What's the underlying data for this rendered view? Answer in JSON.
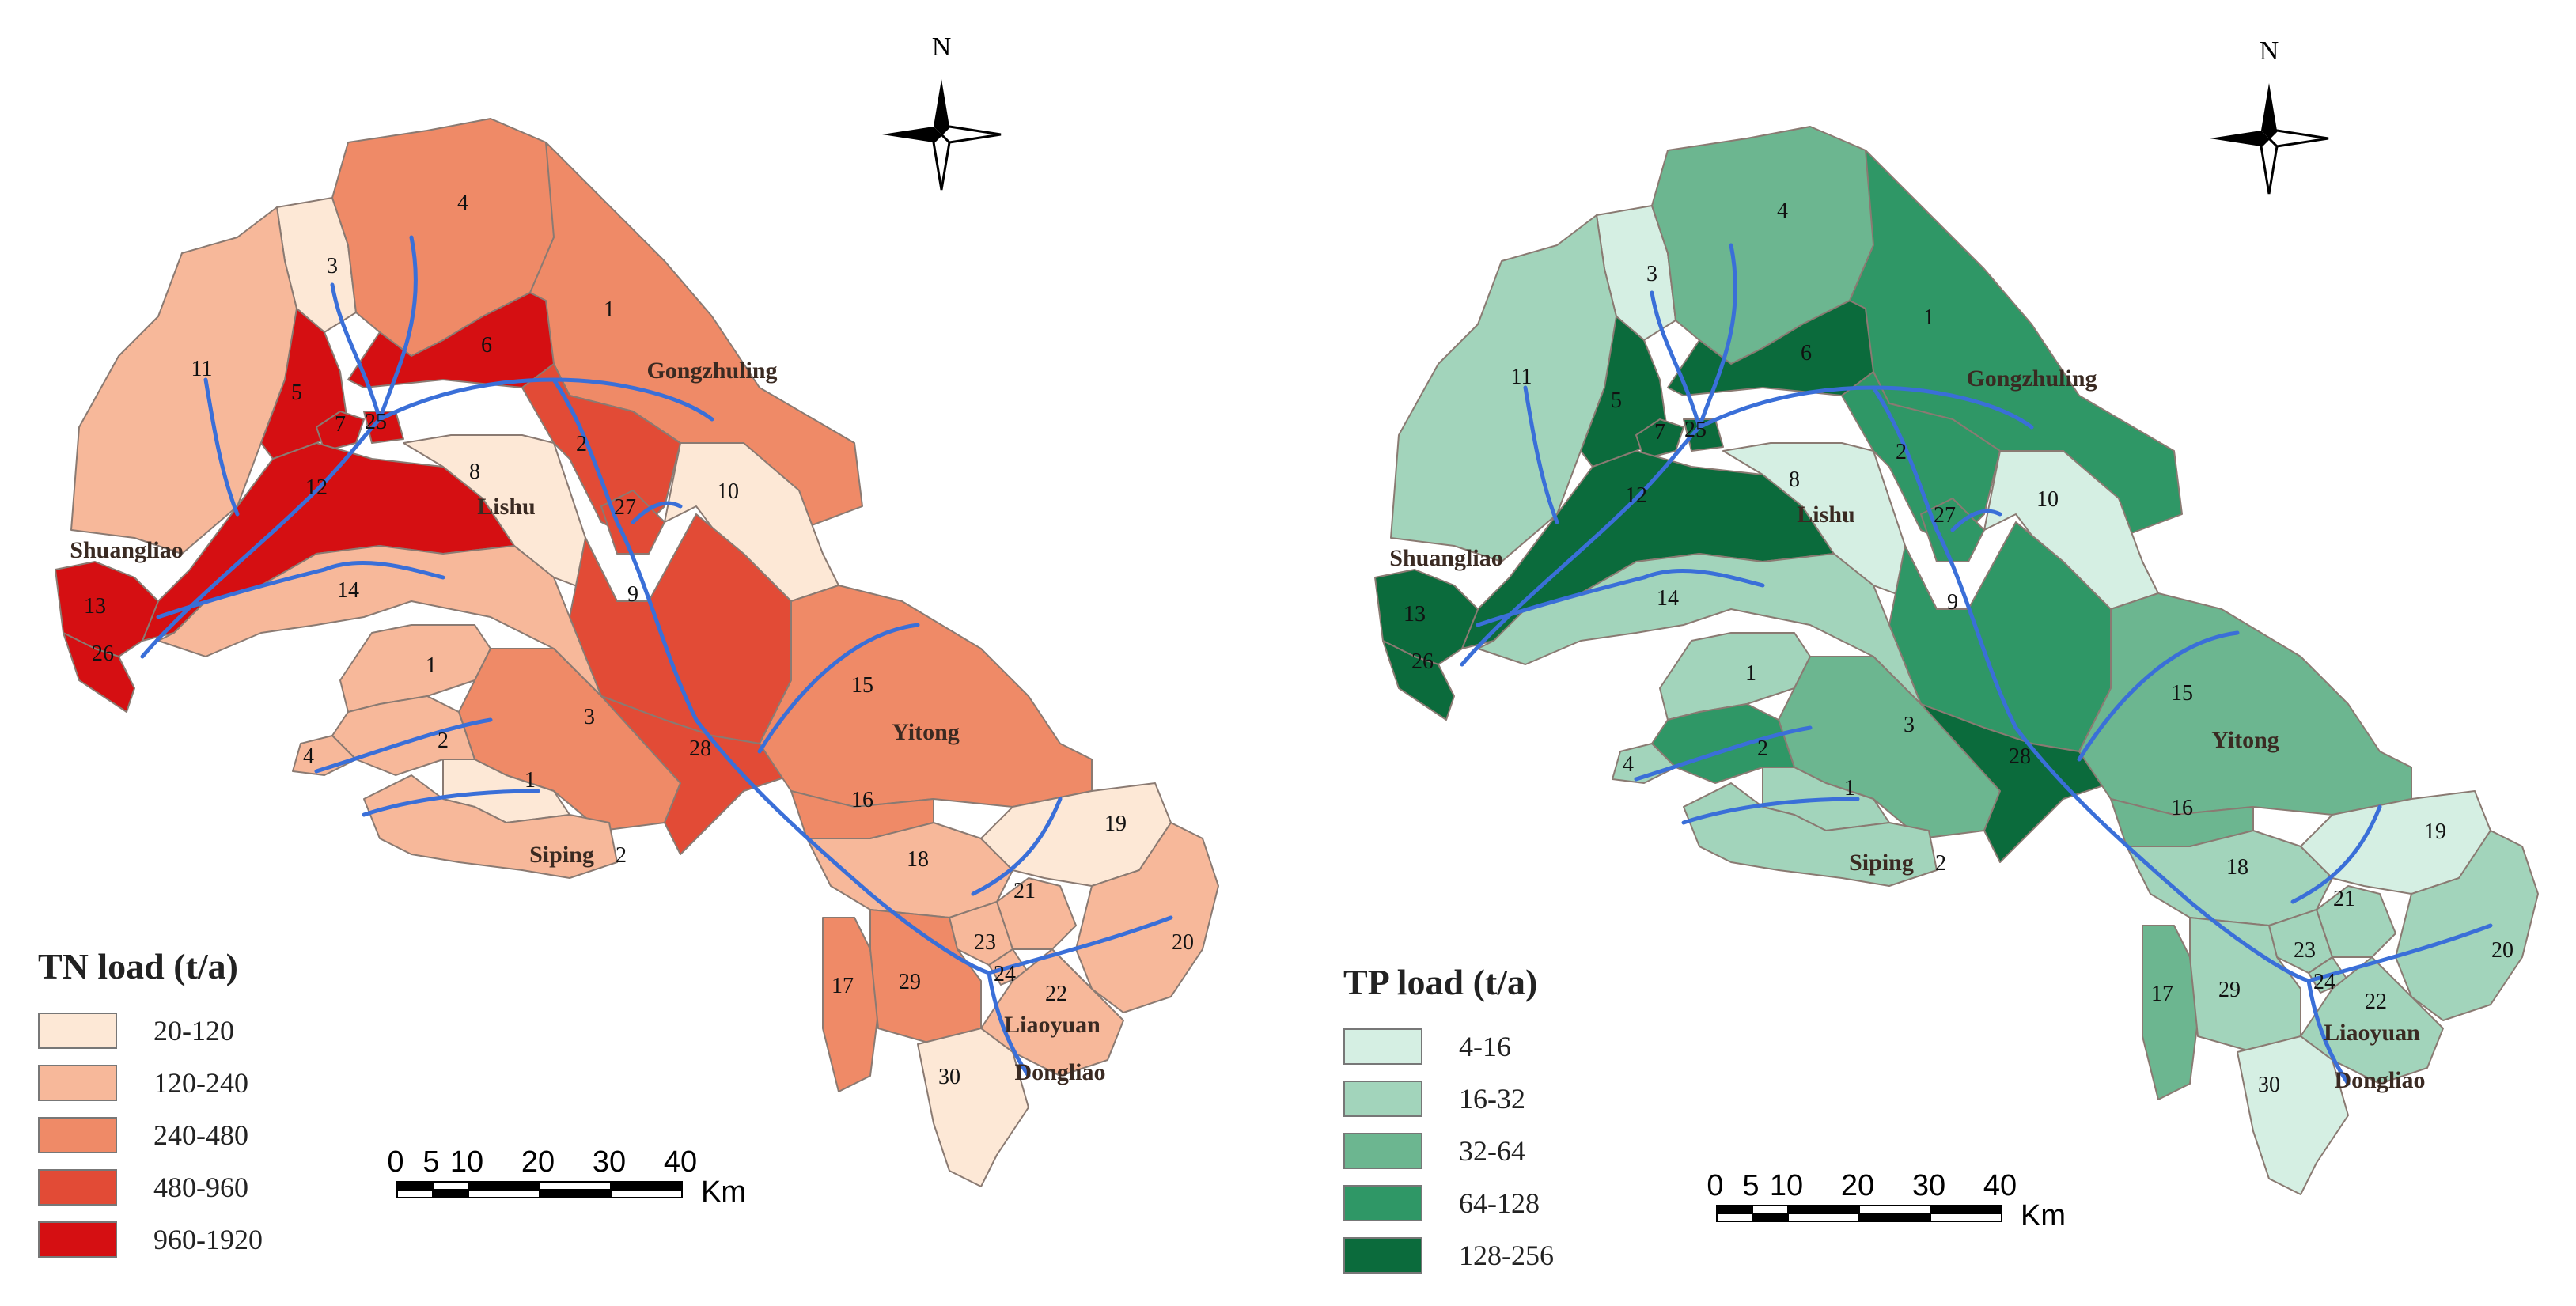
{
  "maps": [
    {
      "id": "tn",
      "north_label": "N",
      "legend_title": "TN load (t/a)",
      "classes": [
        {
          "label": "20-120",
          "color": "#fde8d6"
        },
        {
          "label": "120-240",
          "color": "#f7b89a"
        },
        {
          "label": "240-480",
          "color": "#ef8a67"
        },
        {
          "label": "480-960",
          "color": "#e24b36"
        },
        {
          "label": "960-1920",
          "color": "#d50f12"
        }
      ],
      "region_classes": {
        "3": 0,
        "4": 2,
        "1n": 2,
        "11": 1,
        "5": 4,
        "6": 4,
        "7": 4,
        "25": 4,
        "12": 4,
        "8": 0,
        "2n": 3,
        "27": 3,
        "10": 0,
        "9": 3,
        "14": 1,
        "13": 4,
        "26w": 4,
        "1w": 1,
        "3w": 2,
        "2w": 1,
        "4w": 1,
        "1s": 0,
        "2s": 1,
        "28": 3,
        "15": 2,
        "16": 2,
        "18": 1,
        "19": 0,
        "21": 1,
        "20": 1,
        "23": 1,
        "24": 1,
        "22": 1,
        "17": 2,
        "29": 2,
        "30": 0
      },
      "scale": {
        "ticks": [
          "0",
          "5",
          "10",
          "20",
          "30",
          "40"
        ],
        "unit": "Km"
      }
    },
    {
      "id": "tp",
      "north_label": "N",
      "legend_title": "TP load (t/a)",
      "classes": [
        {
          "label": "4-16",
          "color": "#d5efe3"
        },
        {
          "label": "16-32",
          "color": "#a2d4bb"
        },
        {
          "label": "32-64",
          "color": "#6cb690"
        },
        {
          "label": "64-128",
          "color": "#2f9766"
        },
        {
          "label": "128-256",
          "color": "#0b6b3c"
        }
      ],
      "region_classes": {
        "3": 0,
        "4": 2,
        "1n": 3,
        "11": 1,
        "5": 4,
        "6": 4,
        "7": 4,
        "25": 4,
        "12": 4,
        "8": 0,
        "2n": 3,
        "27": 3,
        "10": 0,
        "9": 3,
        "14": 1,
        "13": 4,
        "26w": 4,
        "1w": 1,
        "3w": 2,
        "2w": 3,
        "4w": 1,
        "1s": 1,
        "2s": 1,
        "28": 4,
        "15": 2,
        "16": 2,
        "18": 1,
        "19": 0,
        "21": 1,
        "20": 1,
        "23": 1,
        "24": 1,
        "22": 1,
        "17": 2,
        "29": 1,
        "30": 0
      },
      "scale": {
        "ticks": [
          "0",
          "5",
          "10",
          "20",
          "30",
          "40"
        ],
        "unit": "Km"
      }
    }
  ],
  "region_labels": {
    "3": "3",
    "4": "4",
    "1n": "1",
    "11": "11",
    "5": "5",
    "6": "6",
    "7": "7",
    "25": "25",
    "12": "12",
    "8": "8",
    "2n": "2",
    "27": "27",
    "10": "10",
    "9": "9",
    "14": "14",
    "13": "13",
    "26w": "26",
    "1w": "1",
    "3w": "3",
    "2w": "2",
    "4w": "4",
    "1s": "1",
    "2s": "2",
    "28": "28",
    "15": "15",
    "16": "16",
    "18": "18",
    "19": "19",
    "21": "21",
    "20": "20",
    "23": "23",
    "24": "24",
    "22": "22",
    "17": "17",
    "29": "29",
    "30": "30"
  },
  "city_labels": [
    "Gongzhuling",
    "Lishu",
    "Shuangliao",
    "Yitong",
    "Siping",
    "Liaoyuan",
    "Dongliao"
  ],
  "river_color": "#3a6fd8"
}
